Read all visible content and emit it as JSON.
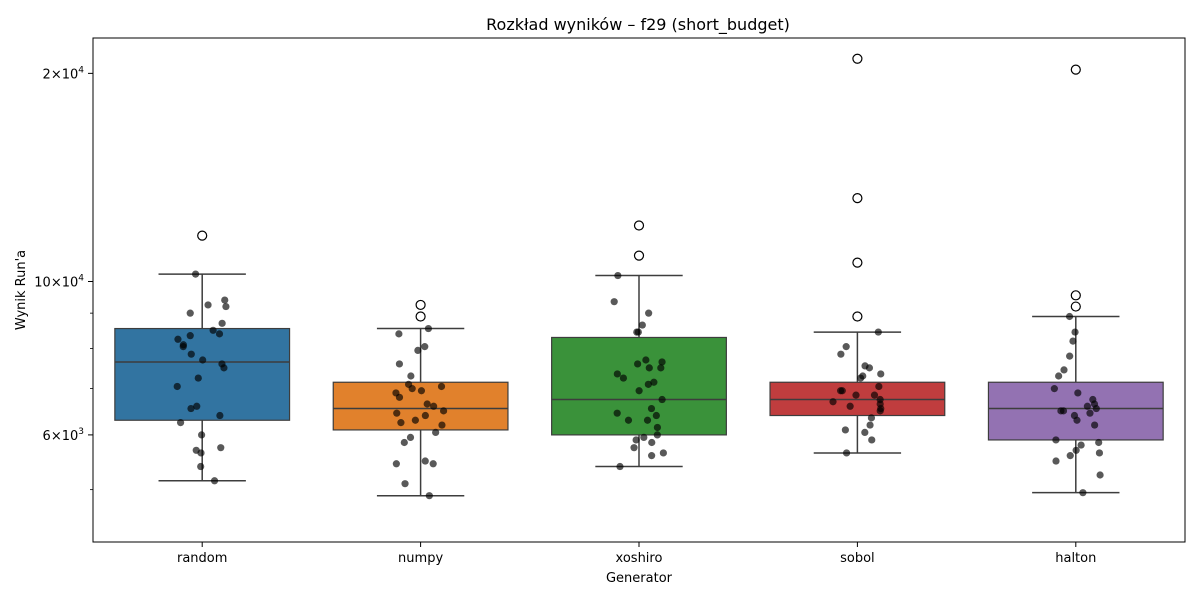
{
  "chart_data": {
    "type": "box",
    "title": "Rozkład wyników – f29 (short_budget)",
    "xlabel": "Generator",
    "ylabel": "Wynik Run'a",
    "yscale": "log",
    "ylim": [
      4200,
      22500
    ],
    "yticks_major": [
      {
        "value": 6000,
        "base": "6",
        "exp": "3"
      },
      {
        "value": 10000,
        "base": "10",
        "exp": "4"
      },
      {
        "value": 20000,
        "base": "2",
        "exp": "4"
      }
    ],
    "yticks_minor": [
      5000,
      7000,
      8000,
      9000
    ],
    "grid": false,
    "categories": [
      "random",
      "numpy",
      "xoshiro",
      "sobol",
      "halton"
    ],
    "boxes": [
      {
        "name": "random",
        "color": "#3274a1",
        "whisker_low": 5150,
        "q1": 6300,
        "median": 7650,
        "q3": 8550,
        "whisker_high": 10250,
        "outliers": [
          11650
        ],
        "points": [
          10250,
          9400,
          9250,
          9200,
          9000,
          8700,
          8500,
          8400,
          8350,
          8250,
          8100,
          8050,
          7850,
          7700,
          7600,
          7500,
          7250,
          7050,
          6600,
          6550,
          6400,
          6250,
          6000,
          5750,
          5700,
          5650,
          5400,
          5150
        ]
      },
      {
        "name": "numpy",
        "color": "#e1812c",
        "whisker_low": 4900,
        "q1": 6100,
        "median": 6550,
        "q3": 7150,
        "whisker_high": 8550,
        "outliers": [
          9250,
          8900
        ],
        "points": [
          8550,
          8400,
          8050,
          7950,
          7600,
          7300,
          7100,
          7050,
          7000,
          6950,
          6900,
          6800,
          6650,
          6600,
          6500,
          6450,
          6400,
          6300,
          6250,
          6200,
          6050,
          5950,
          5850,
          5500,
          5450,
          5450,
          5100,
          4900
        ]
      },
      {
        "name": "xoshiro",
        "color": "#3a923a",
        "whisker_low": 5400,
        "q1": 6000,
        "median": 6750,
        "q3": 8300,
        "whisker_high": 10200,
        "outliers": [
          12050,
          10900
        ],
        "points": [
          10200,
          9350,
          9000,
          8650,
          8450,
          8450,
          7700,
          7650,
          7600,
          7500,
          7500,
          7350,
          7250,
          7150,
          7100,
          6950,
          6750,
          6550,
          6450,
          6400,
          6300,
          6300,
          6150,
          6000,
          5950,
          5900,
          5850,
          5750,
          5650,
          5600,
          5400
        ]
      },
      {
        "name": "sobol",
        "color": "#c03d3e",
        "whisker_low": 5650,
        "q1": 6400,
        "median": 6750,
        "q3": 7150,
        "whisker_high": 8450,
        "outliers": [
          21000,
          13200,
          10650,
          8900
        ],
        "points": [
          8450,
          8050,
          7850,
          7550,
          7500,
          7350,
          7300,
          7250,
          7050,
          6950,
          6950,
          6850,
          6850,
          6750,
          6700,
          6650,
          6600,
          6550,
          6500,
          6350,
          6200,
          6100,
          6050,
          5900,
          5650
        ]
      },
      {
        "name": "halton",
        "color": "#9372b2",
        "whisker_low": 4950,
        "q1": 5900,
        "median": 6550,
        "q3": 7150,
        "whisker_high": 8900,
        "outliers": [
          20250,
          9550,
          9200
        ],
        "points": [
          8900,
          8450,
          8200,
          7800,
          7450,
          7300,
          7000,
          6900,
          6750,
          6650,
          6600,
          6550,
          6500,
          6500,
          6450,
          6400,
          6300,
          6200,
          5900,
          5850,
          5800,
          5700,
          5650,
          5600,
          5500,
          5250,
          4950
        ]
      }
    ]
  }
}
